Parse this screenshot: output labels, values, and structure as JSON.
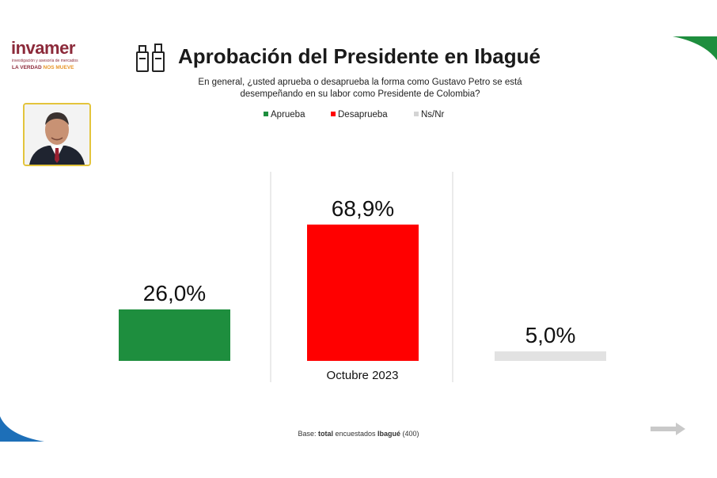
{
  "brand": {
    "name": "invamer",
    "subtitle": "investigación y asesoría de mercados",
    "tagline_main": "LA VERDAD",
    "tagline_accent": "NOS MUEVE"
  },
  "header": {
    "title": "Aprobación del Presidente en Ibagué",
    "question": "En general, ¿usted aprueba o desaprueba la forma como Gustavo Petro se está desempeñando en su labor como Presidente de Colombia?"
  },
  "footer": {
    "prefix": "Base: ",
    "bold1": "total",
    "middle": " encuestados ",
    "bold2": "Ibagué",
    "suffix": " (400)"
  },
  "colors": {
    "aprueba": "#1e8e3e",
    "desaprueba": "#ff0000",
    "nsnr": "#e2e2e2",
    "accent_green": "#1e8e3e",
    "accent_blue": "#1d6fb8"
  },
  "icons": {
    "title_icon": "ballot-box-icon",
    "portrait": "president-portrait-icon",
    "next": "arrow-right-icon"
  },
  "chart_data": {
    "type": "bar",
    "categories": [
      "Octubre 2023"
    ],
    "series": [
      {
        "name": "Aprueba",
        "values": [
          26.0
        ],
        "label": "26,0%",
        "color": "#1e8e3e"
      },
      {
        "name": "Desaprueba",
        "values": [
          68.9
        ],
        "label": "68,9%",
        "color": "#ff0000"
      },
      {
        "name": "Ns/Nr",
        "values": [
          5.0
        ],
        "label": "5,0%",
        "color": "#e2e2e2"
      }
    ],
    "ylim": [
      0,
      100
    ],
    "legend": "top-center",
    "grid": false
  }
}
